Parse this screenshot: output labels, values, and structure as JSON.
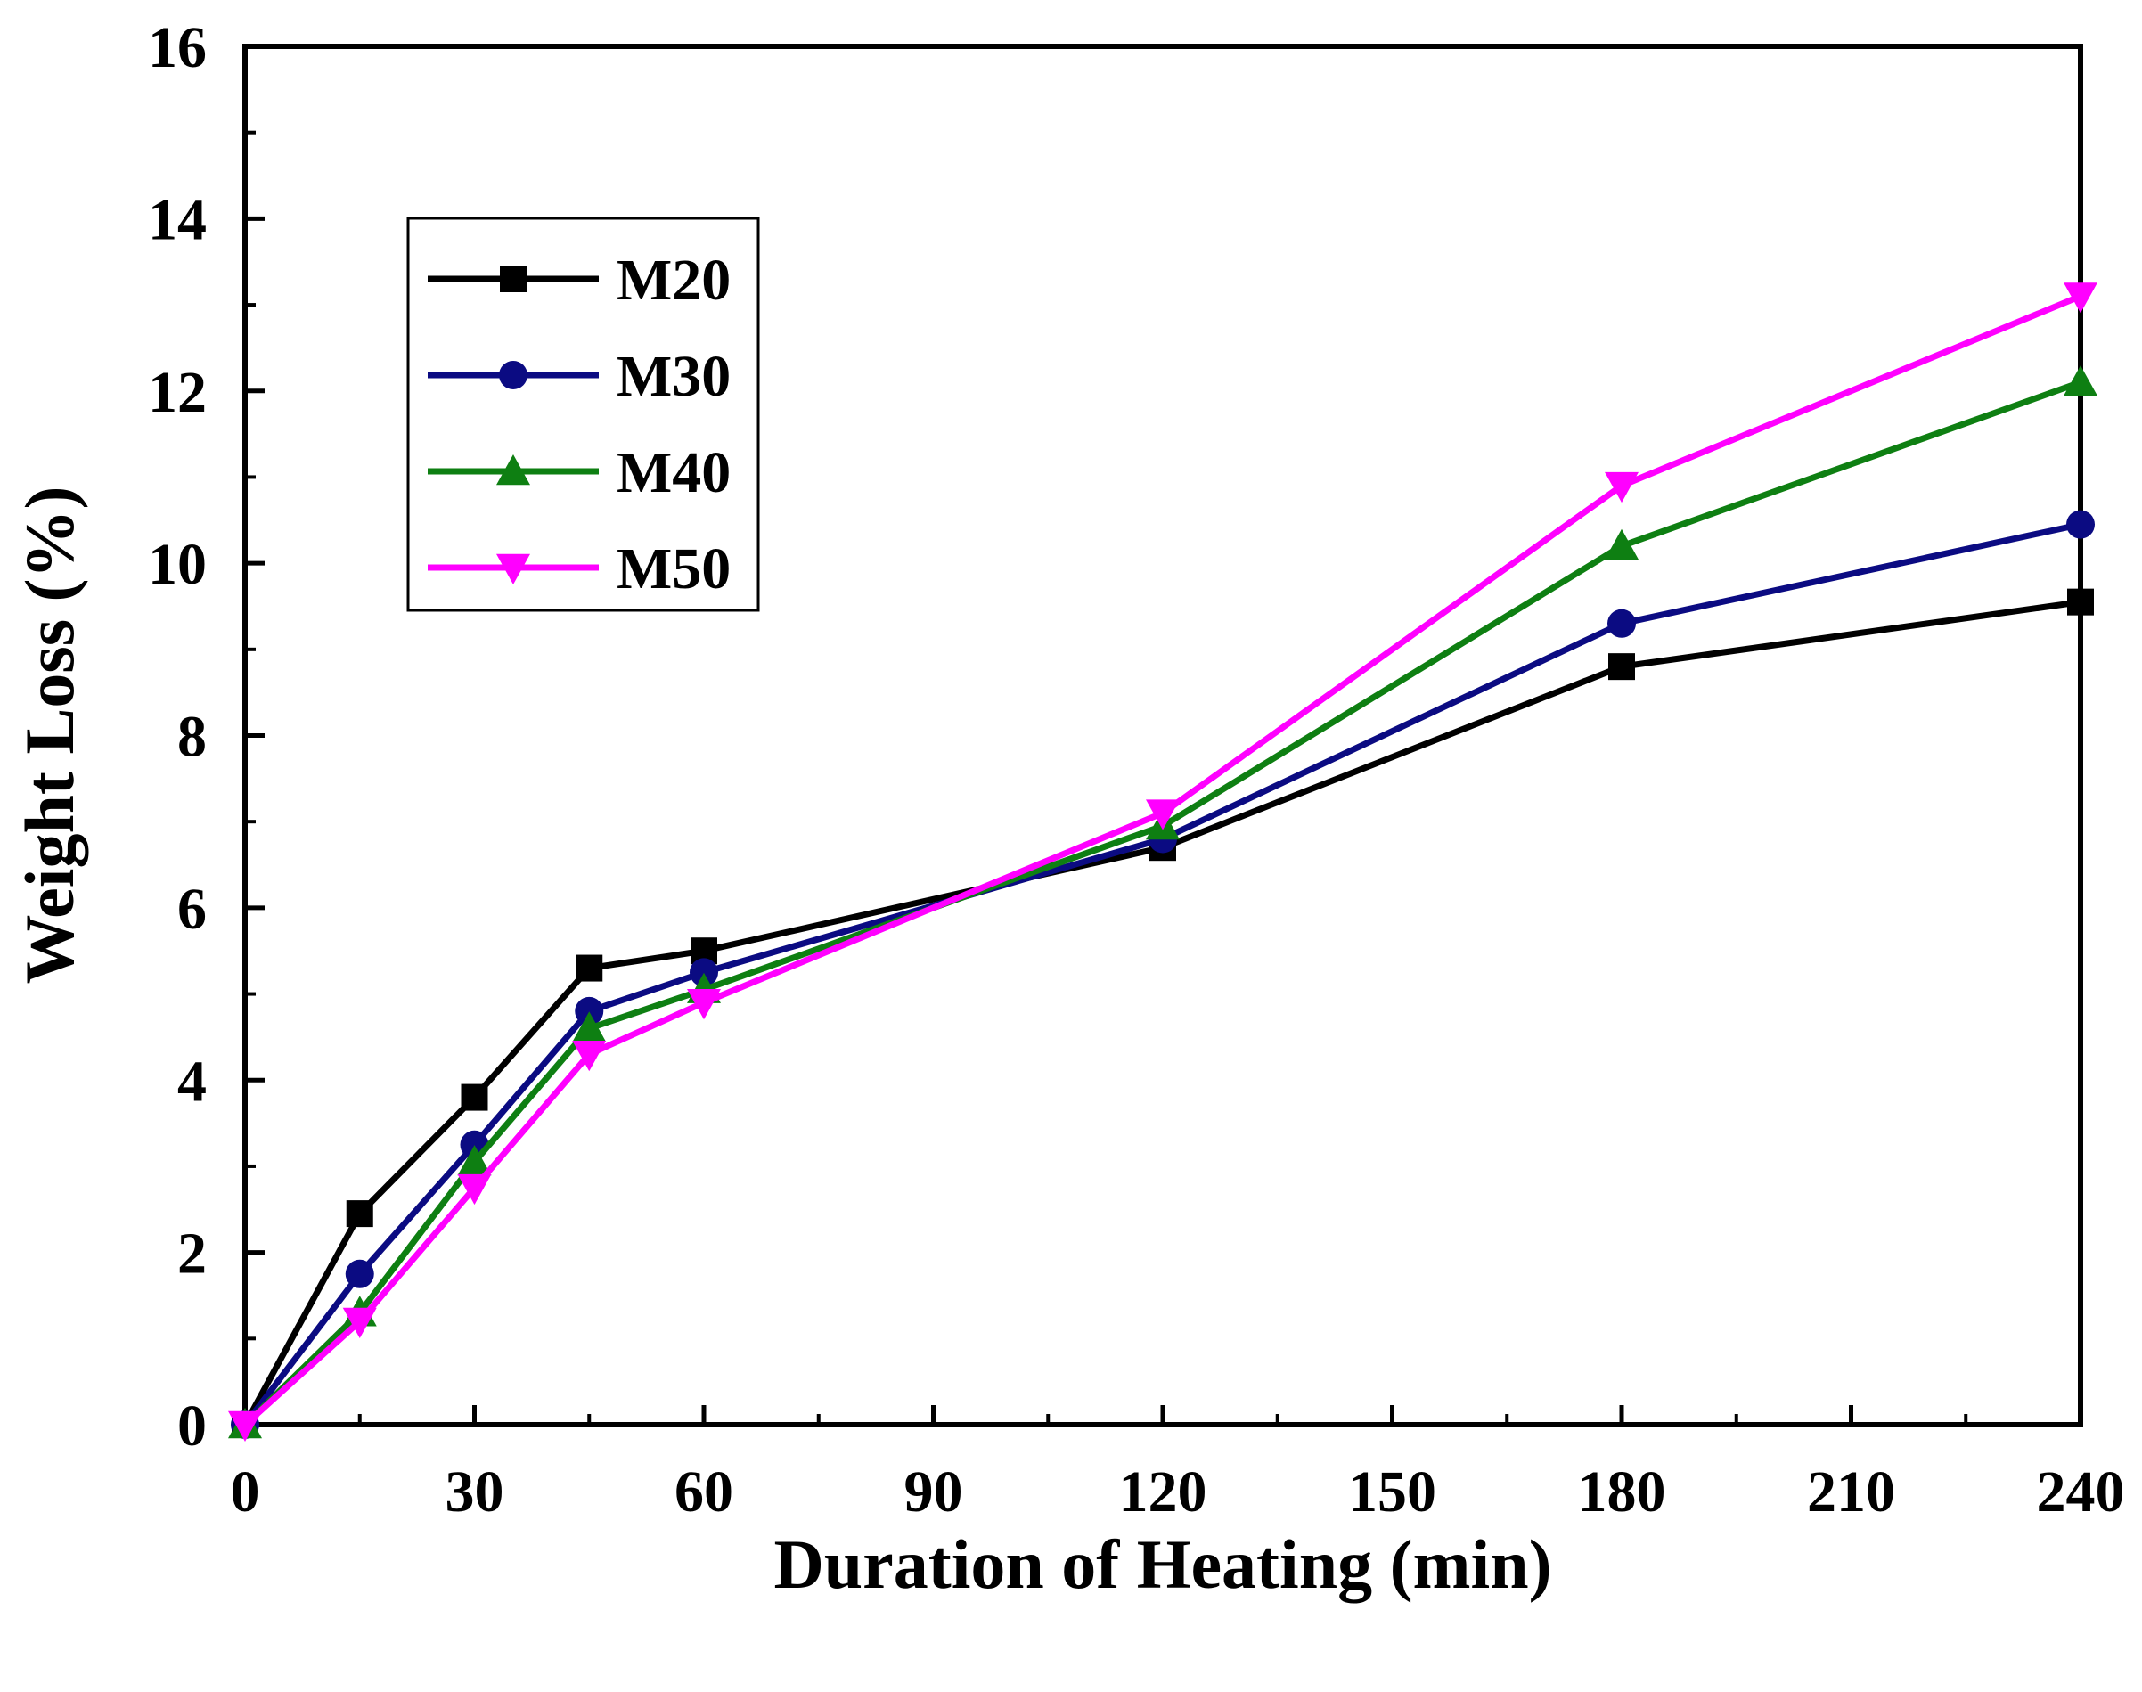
{
  "chart_data": {
    "type": "line",
    "title": "",
    "xlabel": "Duration of Heating (min)",
    "ylabel": "Weight Loss (%)",
    "xlim": [
      0,
      240
    ],
    "ylim": [
      0,
      16
    ],
    "xticks": [
      0,
      30,
      60,
      90,
      120,
      150,
      180,
      210,
      240
    ],
    "yticks": [
      0,
      2,
      4,
      6,
      8,
      10,
      12,
      14,
      16
    ],
    "x": [
      0,
      15,
      30,
      45,
      60,
      120,
      180,
      240
    ],
    "grid": false,
    "legend_position": "upper-left",
    "series": [
      {
        "name": "M20",
        "color": "#000000",
        "marker": "square",
        "values": [
          0,
          2.45,
          3.8,
          5.3,
          5.5,
          6.7,
          8.8,
          9.55
        ]
      },
      {
        "name": "M30",
        "color": "#0b0b82",
        "marker": "circle",
        "values": [
          0,
          1.75,
          3.25,
          4.8,
          5.25,
          6.8,
          9.3,
          10.45
        ]
      },
      {
        "name": "M40",
        "color": "#0e7f12",
        "marker": "triangle-up",
        "values": [
          0,
          1.3,
          3.05,
          4.6,
          5.05,
          6.95,
          10.2,
          12.1
        ]
      },
      {
        "name": "M50",
        "color": "#ff00ff",
        "marker": "triangle-down",
        "values": [
          0,
          1.2,
          2.75,
          4.3,
          4.9,
          7.1,
          10.9,
          13.1
        ]
      }
    ]
  }
}
